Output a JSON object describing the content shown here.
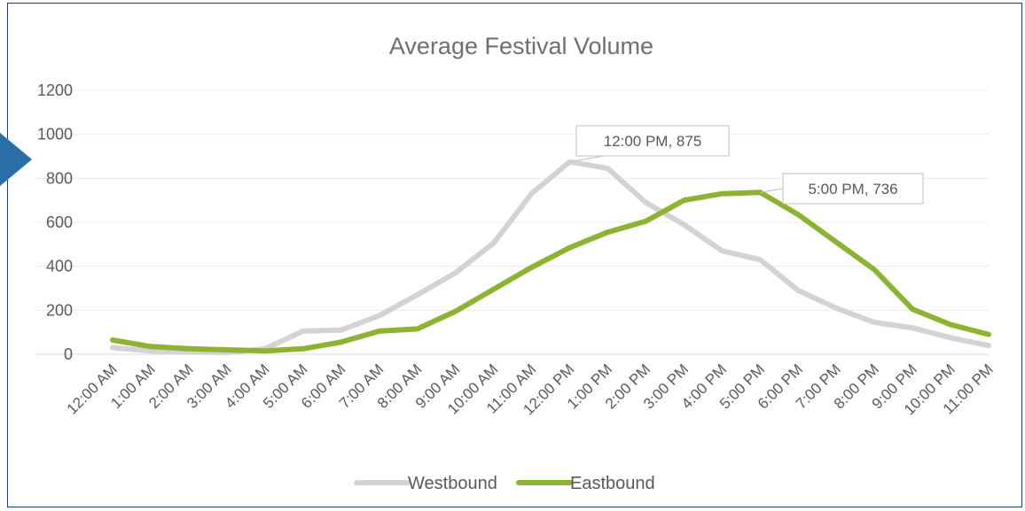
{
  "chart_data": {
    "type": "line",
    "title": "Average Festival Volume",
    "xlabel": "",
    "ylabel": "",
    "ylim": [
      0,
      1200
    ],
    "yticks": [
      0,
      200,
      400,
      600,
      800,
      1000,
      1200
    ],
    "grid": "horizontal",
    "legend_position": "bottom",
    "categories": [
      "12:00 AM",
      "1:00 AM",
      "2:00 AM",
      "3:00 AM",
      "4:00 AM",
      "5:00 AM",
      "6:00 AM",
      "7:00 AM",
      "8:00 AM",
      "9:00 AM",
      "10:00 AM",
      "11:00 AM",
      "12:00 PM",
      "1:00 PM",
      "2:00 PM",
      "3:00 PM",
      "4:00 PM",
      "5:00 PM",
      "6:00 PM",
      "7:00 PM",
      "8:00 PM",
      "9:00 PM",
      "10:00 PM",
      "11:00 PM"
    ],
    "series": [
      {
        "name": "Westbound",
        "color": "#d3d3d3",
        "values": [
          30,
          15,
          10,
          8,
          25,
          105,
          110,
          175,
          270,
          370,
          505,
          730,
          875,
          845,
          690,
          590,
          470,
          430,
          290,
          210,
          145,
          120,
          75,
          40
        ]
      },
      {
        "name": "Eastbound",
        "color": "#8db332",
        "values": [
          65,
          35,
          25,
          20,
          15,
          25,
          55,
          105,
          115,
          195,
          295,
          395,
          485,
          555,
          605,
          700,
          730,
          736,
          635,
          510,
          385,
          205,
          135,
          90
        ]
      }
    ],
    "annotations": [
      {
        "text": "12:00 PM, 875",
        "series": "Westbound",
        "category": "12:00 PM",
        "value": 875
      },
      {
        "text": "5:00 PM, 736",
        "series": "Eastbound",
        "category": "5:00 PM",
        "value": 736
      }
    ]
  }
}
